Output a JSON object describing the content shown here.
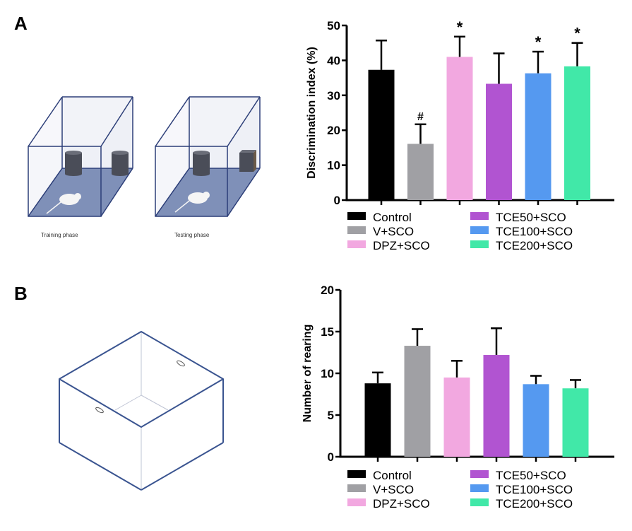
{
  "panels": [
    {
      "label": "A",
      "captions": [
        "Training phase",
        "Testing phase"
      ]
    },
    {
      "label": "B"
    }
  ],
  "chart_data": [
    {
      "type": "bar",
      "title": "",
      "xlabel": "",
      "ylabel": "Discrimination index (%)",
      "ylim": [
        0,
        50
      ],
      "yticks": [
        "0",
        "10",
        "20",
        "30",
        "40",
        "50"
      ],
      "categories": [
        "Control",
        "V+SCO",
        "DPZ+SCO",
        "TCE50+SCO",
        "TCE100+SCO",
        "TCE200+SCO"
      ],
      "values": [
        37.3,
        16.1,
        41.0,
        33.3,
        36.3,
        38.3
      ],
      "error_upper": [
        45.7,
        21.7,
        46.8,
        42.0,
        42.5,
        45.0
      ],
      "annotations": [
        "",
        "#",
        "*",
        "",
        "*",
        "*"
      ],
      "colors": [
        "#000000",
        "#a0a0a4",
        "#f2a8e0",
        "#b154d1",
        "#5599f0",
        "#41e8a8"
      ],
      "legend": {
        "placement": "bottom",
        "entries": [
          "Control",
          "V+SCO",
          "DPZ+SCO",
          "TCE50+SCO",
          "TCE100+SCO",
          "TCE200+SCO"
        ]
      },
      "grid": false
    },
    {
      "type": "bar",
      "title": "",
      "xlabel": "",
      "ylabel": "Number of rearing",
      "ylim": [
        0,
        20
      ],
      "yticks": [
        "0",
        "5",
        "10",
        "15",
        "20"
      ],
      "categories": [
        "Control",
        "V+SCO",
        "DPZ+SCO",
        "TCE50+SCO",
        "TCE100+SCO",
        "TCE200+SCO"
      ],
      "values": [
        8.8,
        13.3,
        9.5,
        12.2,
        8.7,
        8.2
      ],
      "error_upper": [
        10.1,
        15.3,
        11.5,
        15.4,
        9.7,
        9.2
      ],
      "annotations": [
        "",
        "",
        "",
        "",
        "",
        ""
      ],
      "colors": [
        "#000000",
        "#a0a0a4",
        "#f2a8e0",
        "#b154d1",
        "#5599f0",
        "#41e8a8"
      ],
      "legend": {
        "placement": "bottom",
        "entries": [
          "Control",
          "V+SCO",
          "DPZ+SCO",
          "TCE50+SCO",
          "TCE100+SCO",
          "TCE200+SCO"
        ]
      },
      "grid": false
    }
  ]
}
